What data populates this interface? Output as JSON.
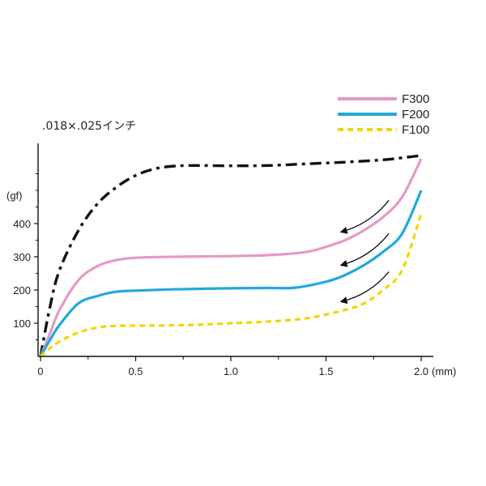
{
  "chart_data": {
    "type": "line",
    "title": ".018×.025インチ",
    "xlabel": "(mm)",
    "ylabel": "(gf)",
    "xlim": [
      0,
      2.0
    ],
    "ylim": [
      0,
      620
    ],
    "x_ticks": [
      "0",
      "0.5",
      "1.0",
      "1.5",
      "2.0"
    ],
    "y_ticks": [
      "100",
      "200",
      "300",
      "400"
    ],
    "grid": false,
    "legend_position": "top-right",
    "series": [
      {
        "name": "",
        "color": "#111111",
        "dash": "dash-dot",
        "points": [
          [
            0,
            0
          ],
          [
            0.05,
            150
          ],
          [
            0.1,
            260
          ],
          [
            0.2,
            380
          ],
          [
            0.3,
            460
          ],
          [
            0.4,
            510
          ],
          [
            0.5,
            545
          ],
          [
            0.6,
            565
          ],
          [
            0.7,
            573
          ],
          [
            0.8,
            575
          ],
          [
            1.0,
            574
          ],
          [
            1.2,
            575
          ],
          [
            1.4,
            580
          ],
          [
            1.6,
            585
          ],
          [
            1.8,
            592
          ],
          [
            1.9,
            598
          ],
          [
            2.0,
            605
          ]
        ]
      },
      {
        "name": "F300",
        "color": "#e49ac6",
        "dash": "solid",
        "points": [
          [
            0,
            0
          ],
          [
            0.05,
            70
          ],
          [
            0.1,
            140
          ],
          [
            0.2,
            230
          ],
          [
            0.3,
            272
          ],
          [
            0.4,
            290
          ],
          [
            0.5,
            297
          ],
          [
            0.7,
            300
          ],
          [
            1.0,
            302
          ],
          [
            1.2,
            305
          ],
          [
            1.4,
            315
          ],
          [
            1.5,
            330
          ],
          [
            1.6,
            350
          ],
          [
            1.7,
            380
          ],
          [
            1.8,
            420
          ],
          [
            1.9,
            480
          ],
          [
            2.0,
            595
          ]
        ]
      },
      {
        "name": "F200",
        "color": "#22a9dc",
        "dash": "solid",
        "points": [
          [
            0,
            0
          ],
          [
            0.05,
            50
          ],
          [
            0.1,
            95
          ],
          [
            0.2,
            160
          ],
          [
            0.3,
            182
          ],
          [
            0.4,
            195
          ],
          [
            0.5,
            198
          ],
          [
            0.7,
            202
          ],
          [
            1.0,
            205
          ],
          [
            1.2,
            206
          ],
          [
            1.34,
            207
          ],
          [
            1.5,
            225
          ],
          [
            1.6,
            245
          ],
          [
            1.7,
            275
          ],
          [
            1.8,
            315
          ],
          [
            1.9,
            370
          ],
          [
            2.0,
            500
          ]
        ]
      },
      {
        "name": "F100",
        "color": "#f2d600",
        "dash": "dashed",
        "points": [
          [
            0,
            0
          ],
          [
            0.05,
            25
          ],
          [
            0.1,
            45
          ],
          [
            0.2,
            72
          ],
          [
            0.3,
            87
          ],
          [
            0.4,
            92
          ],
          [
            0.6,
            93
          ],
          [
            0.8,
            95
          ],
          [
            1.0,
            100
          ],
          [
            1.2,
            105
          ],
          [
            1.4,
            115
          ],
          [
            1.6,
            140
          ],
          [
            1.7,
            160
          ],
          [
            1.8,
            200
          ],
          [
            1.9,
            260
          ],
          [
            2.0,
            430
          ]
        ]
      }
    ],
    "annotations": {
      "arrows": [
        {
          "from": [
            1.83,
            470
          ],
          "to": [
            1.58,
            375
          ]
        },
        {
          "from": [
            1.83,
            370
          ],
          "to": [
            1.58,
            275
          ]
        },
        {
          "from": [
            1.83,
            255
          ],
          "to": [
            1.58,
            165
          ]
        }
      ]
    }
  }
}
